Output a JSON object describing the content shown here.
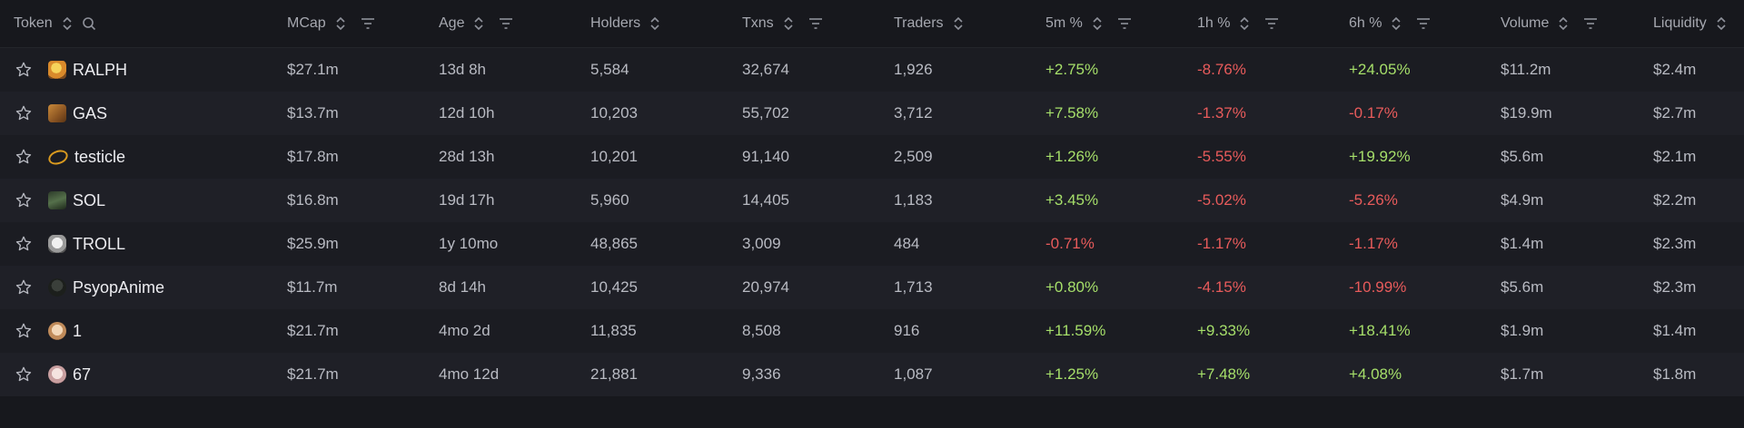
{
  "header": {
    "token": "Token",
    "mcap": "MCap",
    "age": "Age",
    "holders": "Holders",
    "txns": "Txns",
    "traders": "Traders",
    "m5": "5m %",
    "h1": "1h %",
    "h6": "6h %",
    "volume": "Volume",
    "liquidity": "Liquidity"
  },
  "colors": {
    "positive": "#a6df6a",
    "negative": "#e85b5b",
    "background": "#17181d"
  },
  "rows": [
    {
      "token": "RALPH",
      "logo": "ralph-logo",
      "mcap": "$27.1m",
      "age": "13d 8h",
      "holders": "5,584",
      "txns": "32,674",
      "traders": "1,926",
      "m5": "+2.75%",
      "h1": "-8.76%",
      "h6": "+24.05%",
      "volume": "$11.2m",
      "liquidity": "$2.4m"
    },
    {
      "token": "GAS",
      "logo": "gas-logo",
      "mcap": "$13.7m",
      "age": "12d 10h",
      "holders": "10,203",
      "txns": "55,702",
      "traders": "3,712",
      "m5": "+7.58%",
      "h1": "-1.37%",
      "h6": "-0.17%",
      "volume": "$19.9m",
      "liquidity": "$2.7m"
    },
    {
      "token": "testicle",
      "logo": "testicle-logo",
      "mcap": "$17.8m",
      "age": "28d 13h",
      "holders": "10,201",
      "txns": "91,140",
      "traders": "2,509",
      "m5": "+1.26%",
      "h1": "-5.55%",
      "h6": "+19.92%",
      "volume": "$5.6m",
      "liquidity": "$2.1m"
    },
    {
      "token": "SOL",
      "logo": "sol-logo",
      "mcap": "$16.8m",
      "age": "19d 17h",
      "holders": "5,960",
      "txns": "14,405",
      "traders": "1,183",
      "m5": "+3.45%",
      "h1": "-5.02%",
      "h6": "-5.26%",
      "volume": "$4.9m",
      "liquidity": "$2.2m"
    },
    {
      "token": "TROLL",
      "logo": "troll-logo",
      "mcap": "$25.9m",
      "age": "1y 10mo",
      "holders": "48,865",
      "txns": "3,009",
      "traders": "484",
      "m5": "-0.71%",
      "h1": "-1.17%",
      "h6": "-1.17%",
      "volume": "$1.4m",
      "liquidity": "$2.3m"
    },
    {
      "token": "PsyopAnime",
      "logo": "psyopanime-logo",
      "mcap": "$11.7m",
      "age": "8d 14h",
      "holders": "10,425",
      "txns": "20,974",
      "traders": "1,713",
      "m5": "+0.80%",
      "h1": "-4.15%",
      "h6": "-10.99%",
      "volume": "$5.6m",
      "liquidity": "$2.3m"
    },
    {
      "token": "1",
      "logo": "one-logo",
      "mcap": "$21.7m",
      "age": "4mo 2d",
      "holders": "11,835",
      "txns": "8,508",
      "traders": "916",
      "m5": "+11.59%",
      "h1": "+9.33%",
      "h6": "+18.41%",
      "volume": "$1.9m",
      "liquidity": "$1.4m"
    },
    {
      "token": "67",
      "logo": "sixtyseven-logo",
      "mcap": "$21.7m",
      "age": "4mo 12d",
      "holders": "21,881",
      "txns": "9,336",
      "traders": "1,087",
      "m5": "+1.25%",
      "h1": "+7.48%",
      "h6": "+4.08%",
      "volume": "$1.7m",
      "liquidity": "$1.8m"
    }
  ]
}
